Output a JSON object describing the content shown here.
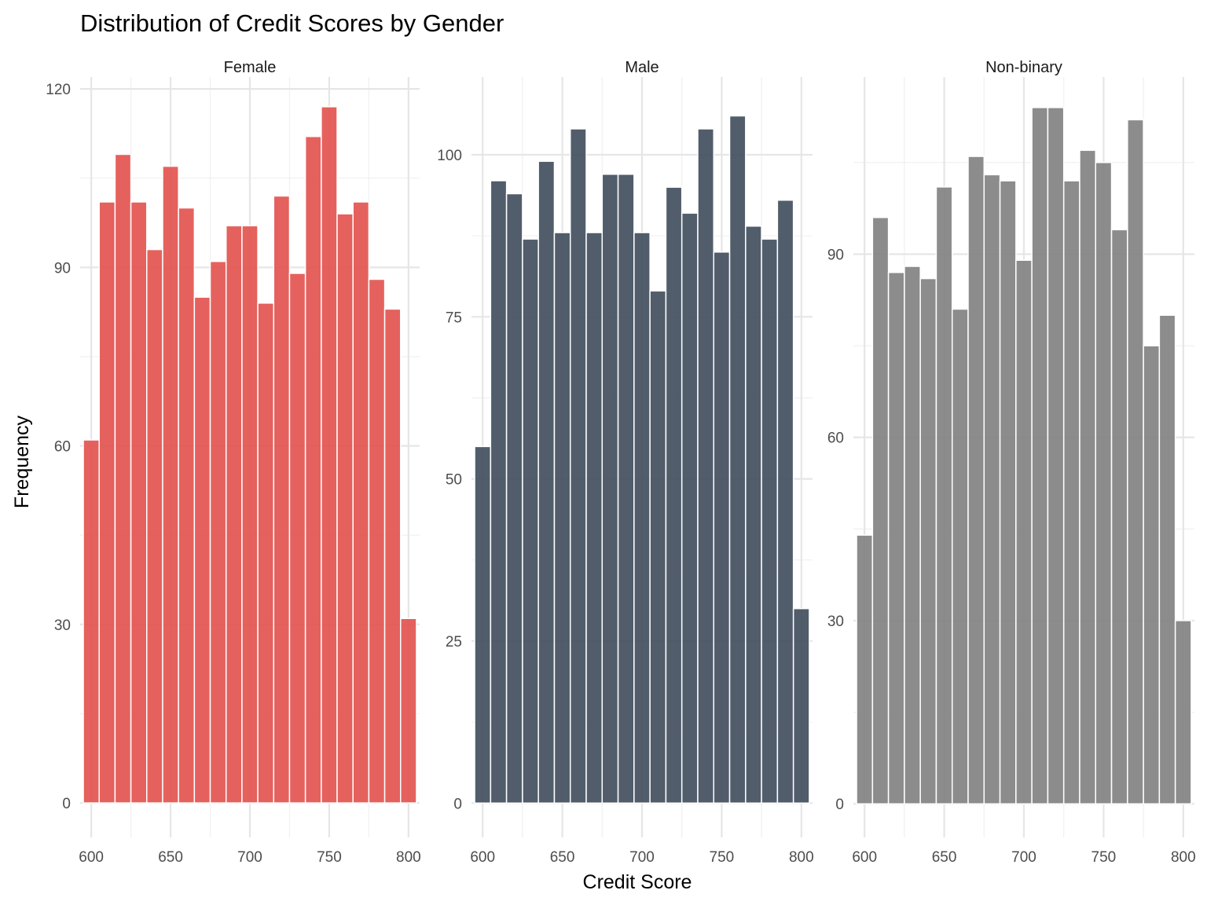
{
  "chart_data": {
    "type": "bar",
    "title": "Distribution of Credit Scores by Gender",
    "xlabel": "Credit Score",
    "ylabel": "Frequency",
    "bins": [
      600,
      610,
      620,
      630,
      640,
      650,
      660,
      670,
      680,
      690,
      700,
      710,
      720,
      730,
      740,
      750,
      760,
      770,
      780,
      790,
      800
    ],
    "xlim": [
      593,
      807
    ],
    "x_ticks": [
      600,
      650,
      700,
      750,
      800
    ],
    "x_tick_labels": [
      "600",
      "650",
      "700",
      "750",
      "800"
    ],
    "grid": true,
    "facets": [
      {
        "name": "Female",
        "color": "#E2504B",
        "ylim": [
          -5.8,
          122
        ],
        "y_ticks": [
          0,
          30,
          60,
          90,
          120
        ],
        "y_tick_labels": [
          "0",
          "30",
          "60",
          "90",
          "120"
        ],
        "values": [
          61,
          101,
          109,
          101,
          93,
          107,
          100,
          85,
          91,
          97,
          97,
          84,
          102,
          89,
          112,
          117,
          99,
          101,
          88,
          83,
          31
        ]
      },
      {
        "name": "Male",
        "color": "#3F4B5B",
        "ylim": [
          -5.3,
          112
        ],
        "y_ticks": [
          0,
          25,
          50,
          75,
          100
        ],
        "y_tick_labels": [
          "0",
          "25",
          "50",
          "75",
          "100"
        ],
        "values": [
          55,
          96,
          94,
          87,
          99,
          88,
          104,
          88,
          97,
          97,
          88,
          79,
          95,
          91,
          104,
          85,
          106,
          89,
          87,
          93,
          30
        ]
      },
      {
        "name": "Non-binary",
        "color": "#808080",
        "ylim": [
          -5.5,
          119
        ],
        "y_ticks": [
          0,
          30,
          60,
          90
        ],
        "y_tick_labels": [
          "0",
          "30",
          "60",
          "90"
        ],
        "values": [
          44,
          96,
          87,
          88,
          86,
          101,
          81,
          106,
          103,
          102,
          89,
          114,
          114,
          102,
          107,
          105,
          94,
          112,
          75,
          80,
          30
        ]
      }
    ]
  }
}
